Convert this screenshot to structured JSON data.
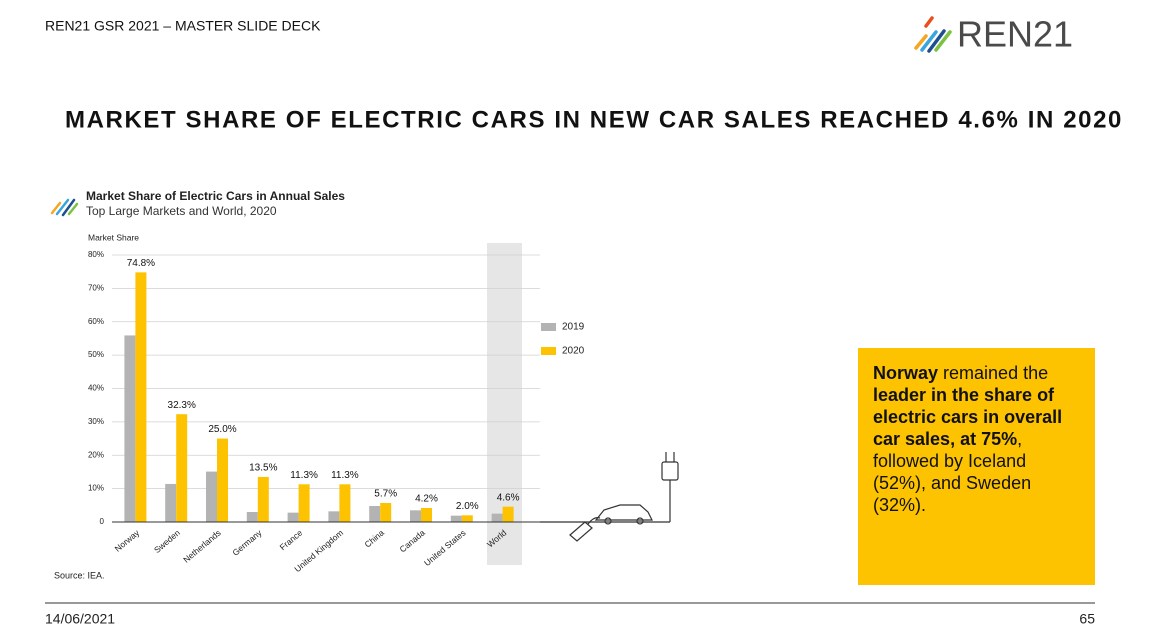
{
  "header": {
    "deck": "REN21 GSR 2021 – MASTER SLIDE DECK",
    "logo": "REN21"
  },
  "slide_title": "MARKET SHARE OF ELECTRIC CARS IN NEW CAR SALES REACHED 4.6% IN 2020",
  "chart_data": {
    "type": "bar",
    "title": "Market Share of Electric Cars in Annual Sales",
    "subtitle": "Top Large Markets and World, 2020",
    "y_label": "Market Share",
    "categories": [
      "Norway",
      "Sweden",
      "Netherlands",
      "Germany",
      "France",
      "United Kingdom",
      "China",
      "Canada",
      "United States",
      "World"
    ],
    "series": [
      {
        "name": "2019",
        "color": "#b3b3b3",
        "values": [
          55.9,
          11.4,
          15.1,
          3.0,
          2.8,
          3.2,
          4.8,
          3.5,
          1.9,
          2.5
        ]
      },
      {
        "name": "2020",
        "color": "#fdc300",
        "values": [
          74.8,
          32.3,
          25.0,
          13.5,
          11.3,
          11.3,
          5.7,
          4.2,
          2.0,
          4.6
        ],
        "value_labels": [
          "74.8%",
          "32.3%",
          "25.0%",
          "13.5%",
          "11.3%",
          "11.3%",
          "5.7%",
          "4.2%",
          "2.0%",
          "4.6%"
        ]
      }
    ],
    "ylim": [
      0,
      80
    ],
    "yticks": [
      0,
      {
        "value": 10,
        "label": "10%"
      },
      {
        "value": 20,
        "label": "20%"
      },
      {
        "value": 30,
        "label": "30%"
      },
      {
        "value": 40,
        "label": "40%"
      },
      {
        "value": 50,
        "label": "50%"
      },
      {
        "value": 60,
        "label": "60%"
      },
      {
        "value": 70,
        "label": "70%"
      },
      {
        "value": 80,
        "label": "80%"
      }
    ],
    "grid": true,
    "source": "Source: IEA."
  },
  "callout": [
    "Norway",
    " remained the ",
    "leader in the share of electric cars in overall car sales, at 75%",
    ", followed by Iceland (52%), and Sweden (32%)."
  ],
  "footer": {
    "date": "14/06/2021",
    "page": "65"
  }
}
